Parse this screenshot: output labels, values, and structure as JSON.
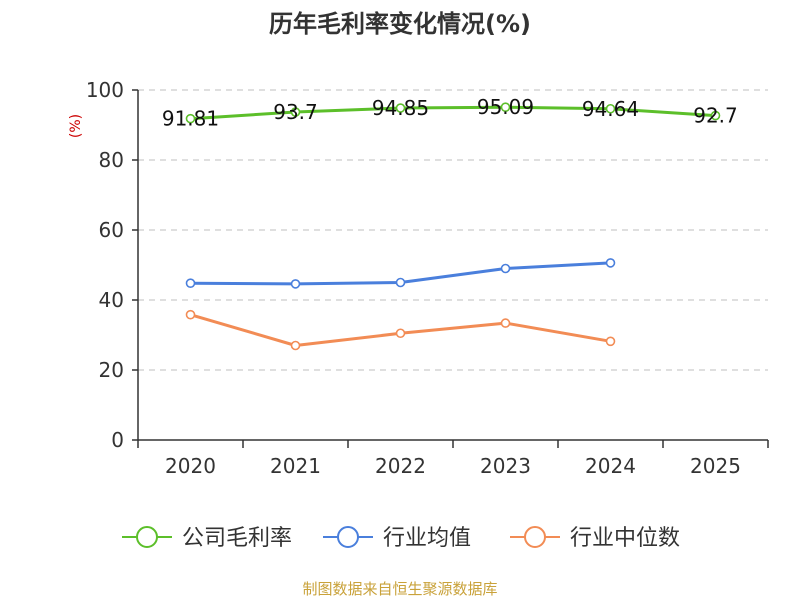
{
  "colors": {
    "company": "#5cbf2a",
    "industry_avg": "#4a7fdc",
    "industry_median": "#f28c55",
    "grid": "#cccccc",
    "axis": "#333333",
    "source": "#c9a23a"
  },
  "source_note": "制图数据来自恒生聚源数据库",
  "chart_data": {
    "type": "line",
    "title": "历年毛利率变化情况(%)",
    "ylabel": "(%)",
    "xlabel": "",
    "ylim": [
      0,
      100
    ],
    "yticks": [
      0,
      20,
      40,
      60,
      80,
      100
    ],
    "categories": [
      "2020",
      "2021",
      "2022",
      "2023",
      "2024",
      "2025"
    ],
    "grid": true,
    "legend_position": "bottom",
    "series": [
      {
        "name": "公司毛利率",
        "color_key": "company",
        "values": [
          91.81,
          93.7,
          94.85,
          95.09,
          94.64,
          92.7
        ],
        "labels": [
          "91.81",
          "93.7",
          "94.85",
          "95.09",
          "94.64",
          "92.7"
        ]
      },
      {
        "name": "行业均值",
        "color_key": "industry_avg",
        "values": [
          44.8,
          44.6,
          45.0,
          49.0,
          50.6,
          null
        ]
      },
      {
        "name": "行业中位数",
        "color_key": "industry_median",
        "values": [
          35.8,
          27.0,
          30.5,
          33.4,
          28.2,
          null
        ]
      }
    ]
  }
}
